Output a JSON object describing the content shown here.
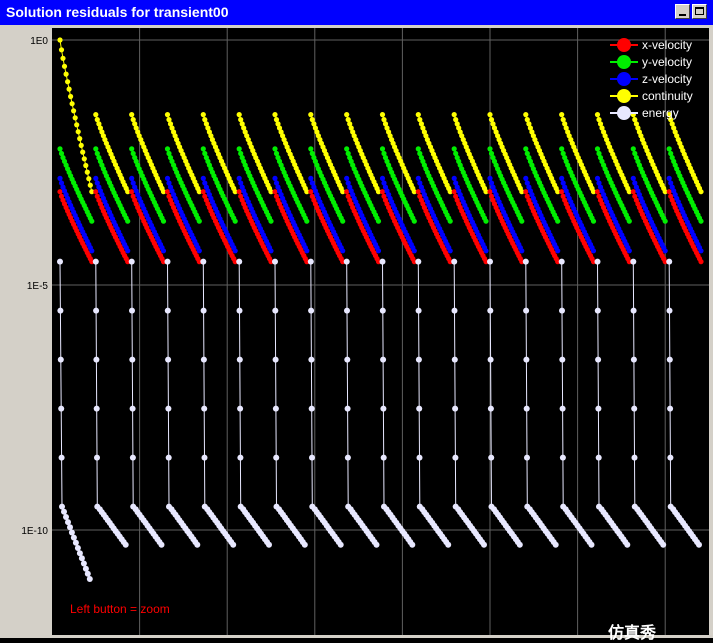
{
  "window": {
    "title": "Solution residuals for transient00"
  },
  "chart_data": {
    "type": "scatter",
    "title": "",
    "xlabel": "",
    "ylabel": "",
    "y_scale": "log",
    "ylim": [
      1e-11,
      1
    ],
    "y_ticks": [
      "1E0",
      "1E-5",
      "1E-10"
    ],
    "grid": true,
    "legend_position": "top-right",
    "x_range": "iterations (not labeled)",
    "time_steps": 18,
    "series": [
      {
        "name": "x-velocity",
        "color": "#ff0000"
      },
      {
        "name": "y-velocity",
        "color": "#00ee00"
      },
      {
        "name": "z-velocity",
        "color": "#0000ff"
      },
      {
        "name": "continuity",
        "color": "#ffff00"
      },
      {
        "name": "energy",
        "color": "#e8e8ff"
      }
    ],
    "per_step_residuals": {
      "continuity": {
        "start": 0.03,
        "end": 0.0008
      },
      "y-velocity": {
        "start": 0.006,
        "end": 0.0002
      },
      "z-velocity": {
        "start": 0.0015,
        "end": 5e-05
      },
      "x-velocity": {
        "start": 0.0008,
        "end": 3e-05
      },
      "energy": {
        "start": 3e-05,
        "end": 1e-10
      }
    },
    "first_step_start": {
      "continuity": 1,
      "energy": 3e-05
    }
  },
  "hint": "Left button = zoom",
  "watermark": "仿真秀"
}
